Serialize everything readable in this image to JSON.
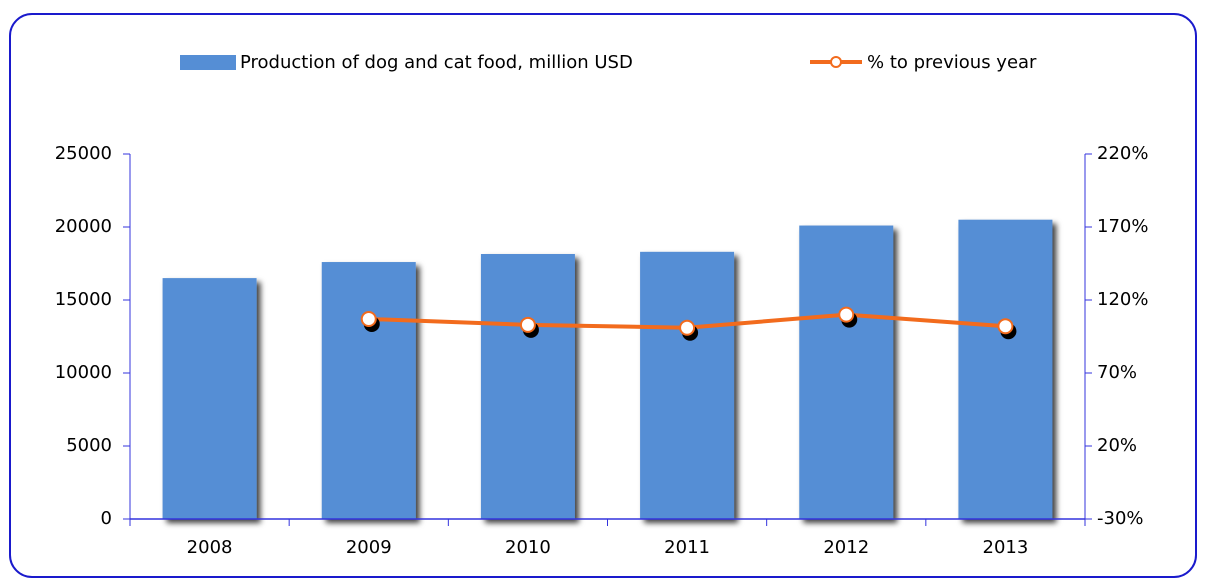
{
  "chart_data": {
    "type": "bar_line",
    "categories": [
      "2008",
      "2009",
      "2010",
      "2011",
      "2012",
      "2013"
    ],
    "series": [
      {
        "name": "Production of dog and cat food, million USD",
        "type": "bar",
        "color": "#558ed5",
        "values": [
          16500,
          17600,
          18150,
          18300,
          20100,
          20500
        ]
      },
      {
        "name": "% to previous year",
        "type": "line",
        "axis": "y2",
        "color": "#f26b1d",
        "values": [
          null,
          107,
          103,
          101,
          110,
          102
        ]
      }
    ],
    "ylim": [
      0,
      25000
    ],
    "yticks": [
      0,
      5000,
      10000,
      15000,
      20000,
      25000
    ],
    "y2lim": [
      -30,
      220
    ],
    "y2ticks": [
      {
        "value": -30,
        "label": "-30%"
      },
      {
        "value": 20,
        "label": "20%"
      },
      {
        "value": 70,
        "label": "70%"
      },
      {
        "value": 120,
        "label": "120%"
      },
      {
        "value": 170,
        "label": "170%"
      },
      {
        "value": 220,
        "label": "220%"
      }
    ],
    "legend": "top"
  }
}
